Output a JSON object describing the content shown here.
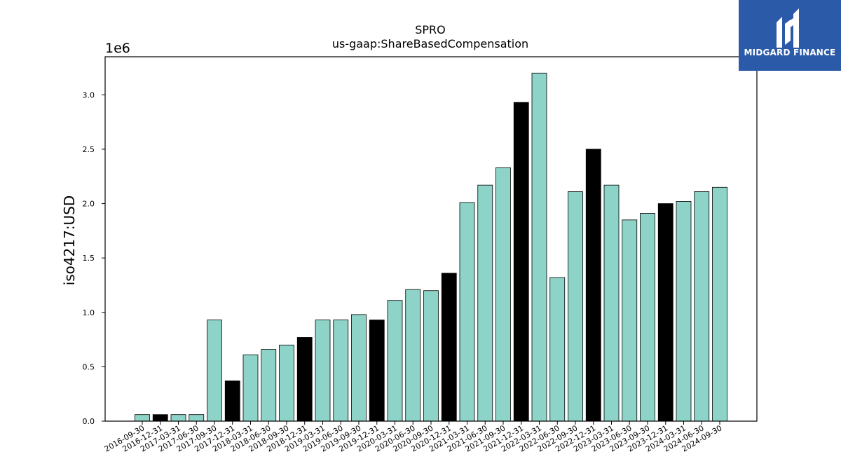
{
  "chart_data": {
    "type": "bar",
    "title": "SPRO",
    "subtitle": "us-gaap:ShareBasedCompensation",
    "ylabel": "iso4217:USD",
    "xlabel": "",
    "y_offset_label": "1e6",
    "ylim": [
      0,
      3.35
    ],
    "yticks": [
      "0.0",
      "0.5",
      "1.0",
      "1.5",
      "2.0",
      "2.5",
      "3.0"
    ],
    "grid": false,
    "categories": [
      "2016-09-30",
      "2016-12-31",
      "2017-03-31",
      "2017-06-30",
      "2017-09-30",
      "2017-12-31",
      "2018-03-31",
      "2018-06-30",
      "2018-09-30",
      "2018-12-31",
      "2019-03-31",
      "2019-06-30",
      "2019-09-30",
      "2019-12-31",
      "2020-03-31",
      "2020-06-30",
      "2020-09-30",
      "2020-12-31",
      "2021-03-31",
      "2021-06-30",
      "2021-09-30",
      "2021-12-31",
      "2022-03-31",
      "2022-06-30",
      "2022-09-30",
      "2022-12-31",
      "2023-03-31",
      "2023-06-30",
      "2023-09-30",
      "2023-12-31",
      "2024-03-31",
      "2024-06-30",
      "2024-09-30"
    ],
    "values": [
      0.06,
      0.06,
      0.06,
      0.06,
      0.93,
      0.37,
      0.61,
      0.66,
      0.7,
      0.77,
      0.93,
      0.93,
      0.98,
      0.93,
      1.11,
      1.21,
      1.2,
      1.36,
      2.01,
      2.17,
      2.33,
      2.93,
      3.2,
      1.32,
      2.11,
      2.5,
      2.17,
      1.85,
      1.91,
      2.0,
      2.02,
      2.11,
      2.15
    ],
    "highlight": [
      false,
      true,
      false,
      false,
      false,
      true,
      false,
      false,
      false,
      true,
      false,
      false,
      false,
      true,
      false,
      false,
      false,
      true,
      false,
      false,
      false,
      true,
      false,
      false,
      false,
      true,
      false,
      false,
      false,
      true,
      false,
      false,
      false
    ],
    "colors": {
      "bar": "#8dd3c7",
      "highlight": "#000000",
      "edge": "#000000"
    }
  },
  "logo": {
    "text": "MIDGARD FINANCE",
    "icon": "midgard-logo-icon",
    "background": "#2b5aa8"
  }
}
